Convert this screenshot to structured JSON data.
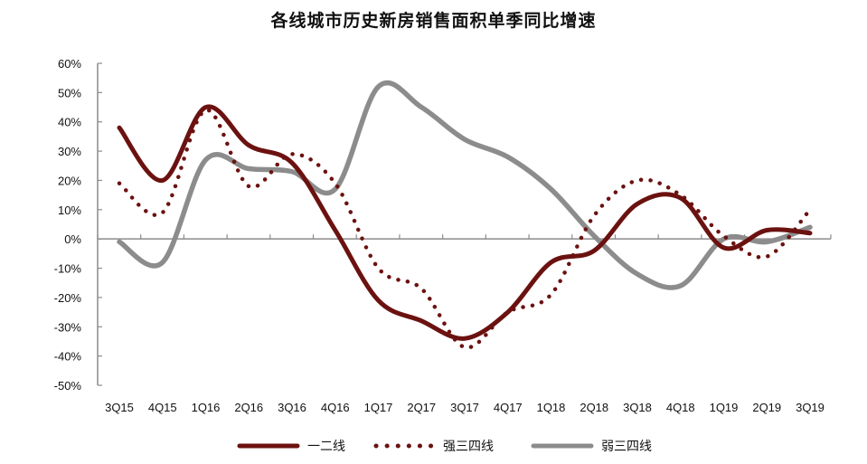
{
  "chart_data": {
    "type": "line",
    "title": "各线城市历史新房销售面积单季同比增速",
    "xlabel": "",
    "ylabel": "",
    "categories": [
      "3Q15",
      "4Q15",
      "1Q16",
      "2Q16",
      "3Q16",
      "4Q16",
      "1Q17",
      "2Q17",
      "3Q17",
      "4Q17",
      "1Q18",
      "2Q18",
      "3Q18",
      "4Q18",
      "1Q19",
      "2Q19",
      "3Q19"
    ],
    "yticks": [
      "60%",
      "50%",
      "40%",
      "30%",
      "20%",
      "10%",
      "0%",
      "-10%",
      "-20%",
      "-30%",
      "-40%",
      "-50%"
    ],
    "ylim": [
      -50,
      60
    ],
    "grid": false,
    "legend_position": "bottom",
    "series": [
      {
        "name": "一二线",
        "style": "solid",
        "color": "#6B1210",
        "values": [
          38,
          20,
          45,
          32,
          26,
          3,
          -21,
          -28,
          -34,
          -25,
          -8,
          -4,
          12,
          14,
          -3,
          3,
          2
        ]
      },
      {
        "name": "强三四线",
        "style": "dotted",
        "color": "#6B1210",
        "values": [
          19,
          9,
          44,
          18,
          29,
          19,
          -10,
          -17,
          -37,
          -25,
          -19,
          8,
          20,
          15,
          1,
          -6,
          10
        ]
      },
      {
        "name": "弱三四线",
        "style": "solid",
        "color": "#8C8C8C",
        "values": [
          -1,
          -8,
          27,
          24,
          23,
          17,
          52,
          45,
          34,
          28,
          17,
          1,
          -12,
          -16,
          0,
          -1,
          4
        ]
      }
    ]
  }
}
